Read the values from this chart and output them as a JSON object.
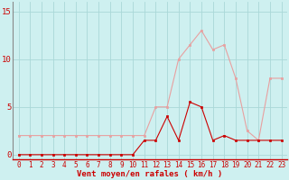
{
  "x": [
    0,
    1,
    2,
    3,
    4,
    5,
    6,
    7,
    8,
    9,
    10,
    11,
    12,
    13,
    14,
    15,
    16,
    17,
    18,
    19,
    20,
    21,
    22,
    23
  ],
  "vent_moyen": [
    0,
    0,
    0,
    0,
    0,
    0,
    0,
    0,
    0,
    0,
    0,
    1.5,
    1.5,
    4,
    1.5,
    5.5,
    5,
    1.5,
    2,
    1.5,
    1.5,
    1.5,
    1.5,
    1.5
  ],
  "rafales": [
    2,
    2,
    2,
    2,
    2,
    2,
    2,
    2,
    2,
    2,
    2,
    2,
    5,
    5,
    10,
    11.5,
    13,
    11,
    11.5,
    8,
    2.5,
    1.5,
    8,
    8
  ],
  "color_moyen": "#cc0000",
  "color_rafales": "#e8a0a0",
  "bg_color": "#cef0f0",
  "grid_color": "#aad8d8",
  "xlabel": "Vent moyen/en rafales ( km/h )",
  "xlabel_color": "#cc0000",
  "xlabel_fontsize": 6.5,
  "tick_color": "#cc0000",
  "tick_fontsize": 5.5,
  "ytick_fontsize": 6.5,
  "yticks": [
    0,
    5,
    10,
    15
  ],
  "ylim": [
    -0.5,
    16
  ],
  "xlim": [
    -0.5,
    23.5
  ],
  "spine_color": "#888888",
  "bottom_spine_color": "#cc0000"
}
